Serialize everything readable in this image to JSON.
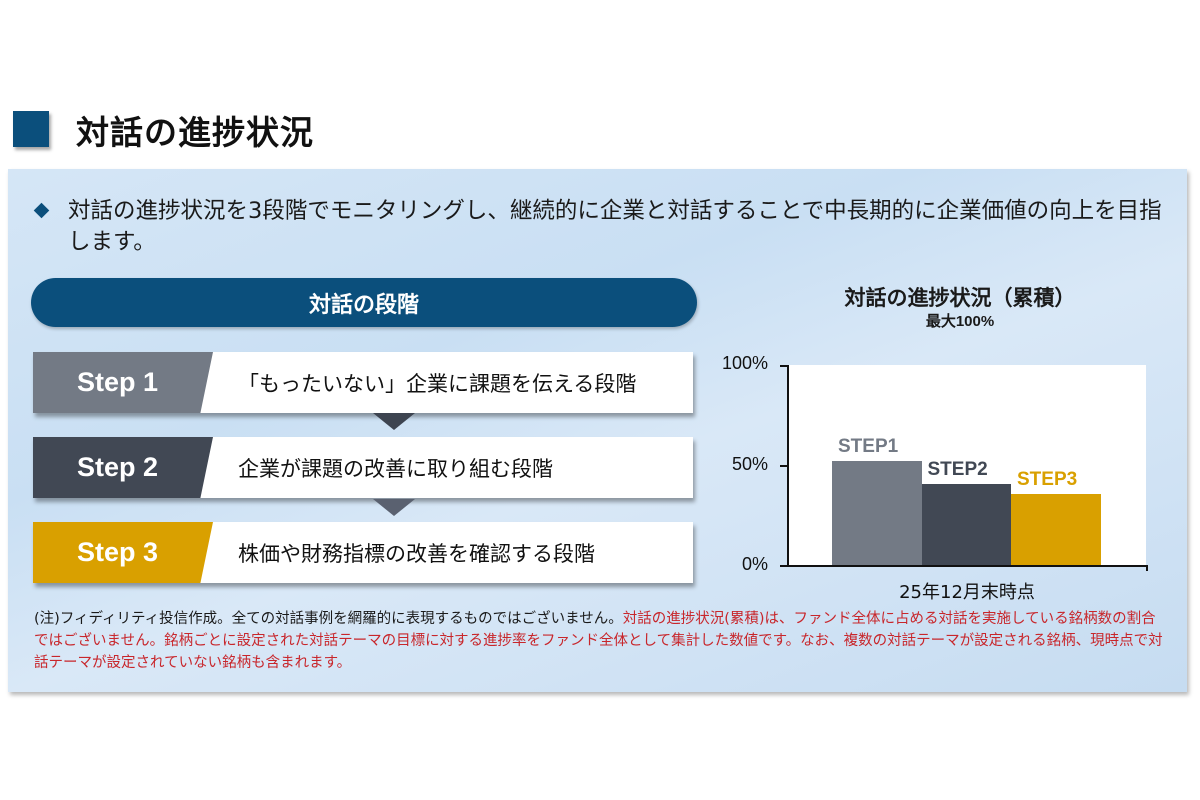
{
  "header": {
    "title": "対話の進捗状況"
  },
  "intro": {
    "bullet_icon": "diamond-icon",
    "text": "対話の進捗状況を3段階でモニタリングし、継続的に企業と対話することで中長期的に企業価値の向上を目指します。"
  },
  "stages": {
    "header": "対話の段階",
    "steps": [
      {
        "label": "Step 1",
        "description": "「もったいない」企業に課題を伝える段階",
        "color": "#737a85"
      },
      {
        "label": "Step 2",
        "description": "企業が課題の改善に取り組む段階",
        "color": "#414854"
      },
      {
        "label": "Step 3",
        "description": "株価や財務指標の改善を確認する段階",
        "color": "#d9a000"
      }
    ],
    "arrow_icon": "chevron-down-triangle-icon"
  },
  "chart_data": {
    "type": "bar",
    "title": "対話の進捗状況（累積）",
    "subtitle": "最大100%",
    "categories": [
      "25年12月末時点"
    ],
    "series": [
      {
        "name": "STEP1",
        "values": [
          52
        ],
        "color": "#737a85"
      },
      {
        "name": "STEP2",
        "values": [
          40.5
        ],
        "color": "#414854"
      },
      {
        "name": "STEP3",
        "values": [
          35.5
        ],
        "color": "#d9a000"
      }
    ],
    "xlabel": "25年12月末時点",
    "ylabel": "",
    "ylim": [
      0,
      100
    ],
    "yticks": [
      "0%",
      "50%",
      "100%"
    ],
    "grid": false,
    "legend": "data labels above bars"
  },
  "note": {
    "black": "(注)フィディリティ投信作成。全ての対話事例を網羅的に表現するものではございません。",
    "red": "対話の進捗状況(累積)は、ファンド全体に占める対話を実施している銘柄数の割合ではございません。銘柄ごとに設定された対話テーマの目標に対する進捗率をファンド全体として集計した数値です。なお、複数の対話テーマが設定される銘柄、現時点で対話テーマが設定されていない銘柄も含まれます。"
  }
}
